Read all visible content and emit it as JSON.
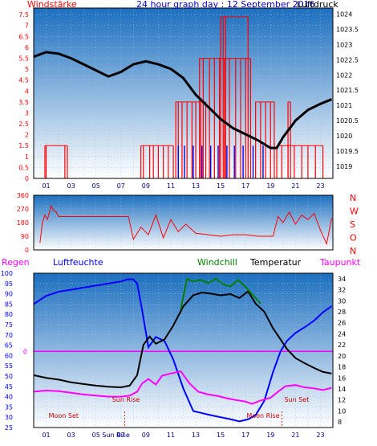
{
  "title": "24 hour graph day : 12 September 2016",
  "colors": {
    "bg_top": "#1c6fbf",
    "bg_bottom": "#ffffff",
    "red": "#ff0000",
    "blue": "#0000ff",
    "black": "#000000",
    "magenta": "#ff00ff",
    "green": "#008000",
    "darkred": "#cc0000"
  },
  "chart_data": [
    {
      "type": "bar",
      "name": "wind",
      "legend_left": "Windstärke",
      "legend_right": "Luftdruck",
      "y_left_ticks": [
        "0",
        "0.5",
        "1",
        "1.5",
        "2",
        "2.5",
        "3",
        "3.5",
        "4",
        "4.5",
        "5",
        "5.5",
        "6",
        "6.5",
        "7",
        "7.5"
      ],
      "y_right_ticks": [
        "1019",
        "1019.5",
        "1020",
        "1020.5",
        "1021",
        "1021.5",
        "1022",
        "1022.5",
        "1023",
        "1023.5",
        "1024"
      ],
      "x_ticks": [
        "01",
        "03",
        "05",
        "07",
        "09",
        "11",
        "13",
        "15",
        "17",
        "19",
        "21",
        "23"
      ],
      "ylim_left": [
        0,
        7.8
      ],
      "ylim_right": [
        1018.6,
        1024.2
      ],
      "wind_segments": [
        {
          "hours": [
            0.9,
            1.0,
            2.5,
            2.7
          ],
          "level": 1.5
        },
        {
          "hours": [
            8.6,
            8.8,
            9.3,
            9.6,
            10.0,
            10.4,
            10.8,
            11.2
          ],
          "level": 1.5
        },
        {
          "hours": [
            11.4,
            11.6,
            11.9,
            12.3,
            12.7,
            13.0,
            13.4,
            13.8
          ],
          "level": 3.5
        },
        {
          "hours": [
            13.3,
            13.6,
            14.1,
            14.5,
            14.9,
            15.3,
            15.7,
            16.2,
            16.6,
            17.0,
            17.4
          ],
          "level": 5.5
        },
        {
          "hours": [
            15.0,
            15.2,
            15.4,
            17.2
          ],
          "level": 7.4
        },
        {
          "hours": [
            17.8,
            18.2,
            18.6,
            19.0,
            19.3
          ],
          "level": 3.5
        },
        {
          "hours": [
            19.5,
            19.9,
            20.4,
            20.9,
            21.5,
            22.0,
            22.6,
            23.2
          ],
          "level": 1.5
        },
        {
          "hours": [
            20.4,
            20.6
          ],
          "level": 3.5
        }
      ],
      "gust_bars": [
        {
          "hours": [
            11.6,
            12.1,
            12.8,
            13.5,
            14.2,
            14.8,
            15.5,
            16.1,
            16.8,
            17.6,
            18.4
          ],
          "level": 1.5
        }
      ],
      "pressure": {
        "x": [
          0,
          1,
          2,
          3,
          4,
          5,
          6,
          7,
          8,
          9,
          10,
          11,
          12,
          13,
          14,
          15,
          16,
          17,
          18,
          19,
          19.5,
          20,
          21,
          22,
          23,
          23.9
        ],
        "y": [
          1022.6,
          1022.75,
          1022.7,
          1022.55,
          1022.35,
          1022.15,
          1021.95,
          1022.1,
          1022.35,
          1022.45,
          1022.35,
          1022.2,
          1021.9,
          1021.35,
          1020.95,
          1020.55,
          1020.25,
          1020.05,
          1019.85,
          1019.6,
          1019.6,
          1019.95,
          1020.5,
          1020.85,
          1021.05,
          1021.2
        ]
      }
    },
    {
      "type": "line",
      "name": "direction",
      "left_ticks": [
        "360",
        "270",
        "180",
        "90",
        "0"
      ],
      "right_labels": [
        "N",
        "W",
        "S",
        "O",
        "N"
      ],
      "ylim": [
        0,
        360
      ],
      "x": [
        0.5,
        0.7,
        0.9,
        1.1,
        1.4,
        1.6,
        1.8,
        2.0,
        5.5,
        7.6,
        8.0,
        8.6,
        9.2,
        9.8,
        10.4,
        11.0,
        11.6,
        12.2,
        13.0,
        14.0,
        15.0,
        16.0,
        17.0,
        18.0,
        18.6,
        19.2,
        19.6,
        20.0,
        20.5,
        21.0,
        21.5,
        22.0,
        22.5,
        23.0,
        23.5,
        23.9
      ],
      "y": [
        45,
        180,
        230,
        200,
        290,
        260,
        250,
        220,
        220,
        220,
        70,
        150,
        100,
        230,
        80,
        200,
        120,
        170,
        110,
        100,
        90,
        100,
        100,
        90,
        90,
        90,
        220,
        180,
        250,
        170,
        230,
        200,
        240,
        130,
        40,
        210
      ]
    },
    {
      "type": "line",
      "name": "temp_humidity",
      "legend": [
        "Regen",
        "Luftfeuchte",
        "Windchill",
        "Temperatur",
        "Taupunkt"
      ],
      "y_left_ticks": [
        "25",
        "30",
        "35",
        "40",
        "45",
        "50",
        "55",
        "60",
        "65",
        "70",
        "75",
        "80",
        "85",
        "90",
        "95",
        "100"
      ],
      "y_right_ticks": [
        "8",
        "10",
        "12",
        "14",
        "16",
        "18",
        "20",
        "22",
        "24",
        "26",
        "28",
        "30",
        "32",
        "34"
      ],
      "rain_marker": "0",
      "annotations": [
        "Sun Rise",
        "Sun Set",
        "Moon Set",
        "Moon Rise",
        "Sun Rise",
        "Sun Set"
      ],
      "ylim_left": [
        25,
        100
      ],
      "ylim_right": [
        7,
        35
      ],
      "series": [
        {
          "name": "Luftfeuchte",
          "x": [
            0,
            1,
            2,
            3,
            4,
            5,
            6,
            7,
            7.5,
            8,
            8.3,
            8.7,
            9.2,
            9.8,
            10.5,
            11.2,
            12.0,
            12.8,
            13.5,
            14.2,
            15.0,
            15.8,
            16.5,
            17.2,
            17.8,
            18.5,
            19.2,
            19.8,
            20.3,
            21.0,
            21.8,
            22.5,
            23.2,
            23.9
          ],
          "y": [
            85,
            89,
            91,
            92,
            93,
            94,
            95,
            96,
            97,
            97,
            95,
            82,
            64,
            69,
            67,
            58,
            44,
            33,
            32,
            31,
            30,
            29,
            28,
            29,
            31,
            38,
            52,
            62,
            67,
            71,
            74,
            77,
            81,
            84
          ]
        },
        {
          "name": "Temperatur",
          "x": [
            0,
            1,
            2,
            3,
            4,
            5,
            6,
            7,
            7.7,
            8.3,
            8.8,
            9.3,
            9.8,
            10.5,
            11.2,
            12.0,
            12.8,
            13.5,
            14.2,
            15.0,
            15.8,
            16.5,
            17.2,
            17.8,
            18.5,
            19.2,
            19.8,
            20.3,
            21.0,
            21.8,
            22.5,
            23.2,
            23.9
          ],
          "y": [
            16.5,
            16.0,
            15.7,
            15.2,
            14.9,
            14.6,
            14.4,
            14.3,
            14.6,
            16.5,
            22.0,
            23.5,
            22.2,
            23.0,
            25.5,
            29.0,
            31.0,
            31.5,
            31.3,
            31.0,
            31.2,
            30.5,
            31.7,
            29.5,
            28.0,
            25.0,
            23.0,
            21.3,
            19.6,
            18.6,
            17.8,
            17.1,
            16.8
          ]
        },
        {
          "name": "Windchill",
          "x": [
            11.8,
            12.3,
            12.8,
            13.4,
            14.0,
            14.6,
            15.2,
            15.8,
            16.4,
            17.0,
            17.6,
            18.2
          ],
          "y": [
            28.5,
            34.0,
            33.5,
            33.8,
            33.2,
            34.0,
            33.0,
            32.6,
            33.8,
            32.5,
            31.0,
            29.5
          ]
        },
        {
          "name": "Taupunkt",
          "x": [
            0,
            1,
            2,
            3,
            4,
            5,
            6,
            7,
            7.7,
            8.3,
            8.7,
            9.2,
            9.8,
            10.3,
            11.0,
            11.8,
            12.5,
            13.2,
            14.0,
            14.8,
            15.5,
            16.2,
            17.0,
            17.5,
            18.2,
            19.0,
            19.6,
            20.2,
            21.0,
            21.7,
            22.5,
            23.2,
            23.9
          ],
          "y": [
            13.5,
            13.7,
            13.6,
            13.3,
            13.0,
            12.8,
            12.6,
            12.6,
            12.8,
            13.5,
            15.0,
            15.8,
            14.8,
            16.4,
            16.8,
            17.2,
            15.0,
            13.5,
            13.0,
            12.7,
            12.3,
            12.0,
            11.7,
            11.3,
            11.9,
            12.4,
            13.5,
            14.5,
            14.7,
            14.3,
            14.1,
            13.8,
            14.2
          ]
        }
      ]
    }
  ]
}
